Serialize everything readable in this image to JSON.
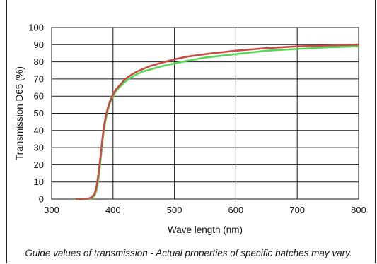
{
  "chart_data": {
    "type": "line",
    "title": "",
    "xlabel": "Wave length (nm)",
    "ylabel": "Transmission D65 (%)",
    "xlim": [
      300,
      800
    ],
    "ylim": [
      0,
      100
    ],
    "xticks": [
      300,
      400,
      500,
      600,
      700,
      800
    ],
    "yticks": [
      0,
      10,
      20,
      30,
      40,
      50,
      60,
      70,
      80,
      90,
      100
    ],
    "grid": true,
    "legend": "none",
    "series": [
      {
        "color": "#57d957",
        "x": [
          340,
          360,
          365,
          370,
          373,
          376,
          379,
          382,
          385,
          388,
          391,
          395,
          400,
          405,
          410,
          420,
          430,
          440,
          450,
          460,
          470,
          480,
          500,
          520,
          550,
          600,
          650,
          700,
          750,
          800
        ],
        "y": [
          0,
          0.1,
          0.5,
          2,
          5,
          11,
          20,
          31,
          40,
          46,
          51,
          56,
          60,
          63,
          65,
          68.5,
          71,
          73,
          74.5,
          75.5,
          76.5,
          77.5,
          79,
          80.5,
          82.5,
          84.5,
          86.5,
          87.5,
          88.5,
          89
        ]
      },
      {
        "color": "#c94b46",
        "x": [
          340,
          360,
          365,
          370,
          373,
          376,
          379,
          382,
          385,
          388,
          391,
          395,
          400,
          405,
          410,
          420,
          430,
          440,
          450,
          460,
          470,
          480,
          500,
          520,
          550,
          600,
          650,
          700,
          750,
          800
        ],
        "y": [
          0,
          0.3,
          1,
          3,
          7,
          14,
          23,
          33,
          42,
          48,
          52.5,
          57,
          61,
          64,
          66,
          70,
          72.5,
          74.5,
          76,
          77.5,
          78.5,
          79.5,
          81.5,
          83,
          84.5,
          86.5,
          88,
          89,
          89.5,
          90
        ]
      }
    ]
  },
  "caption": "Guide values of transmission - Actual properties of specific batches may vary."
}
